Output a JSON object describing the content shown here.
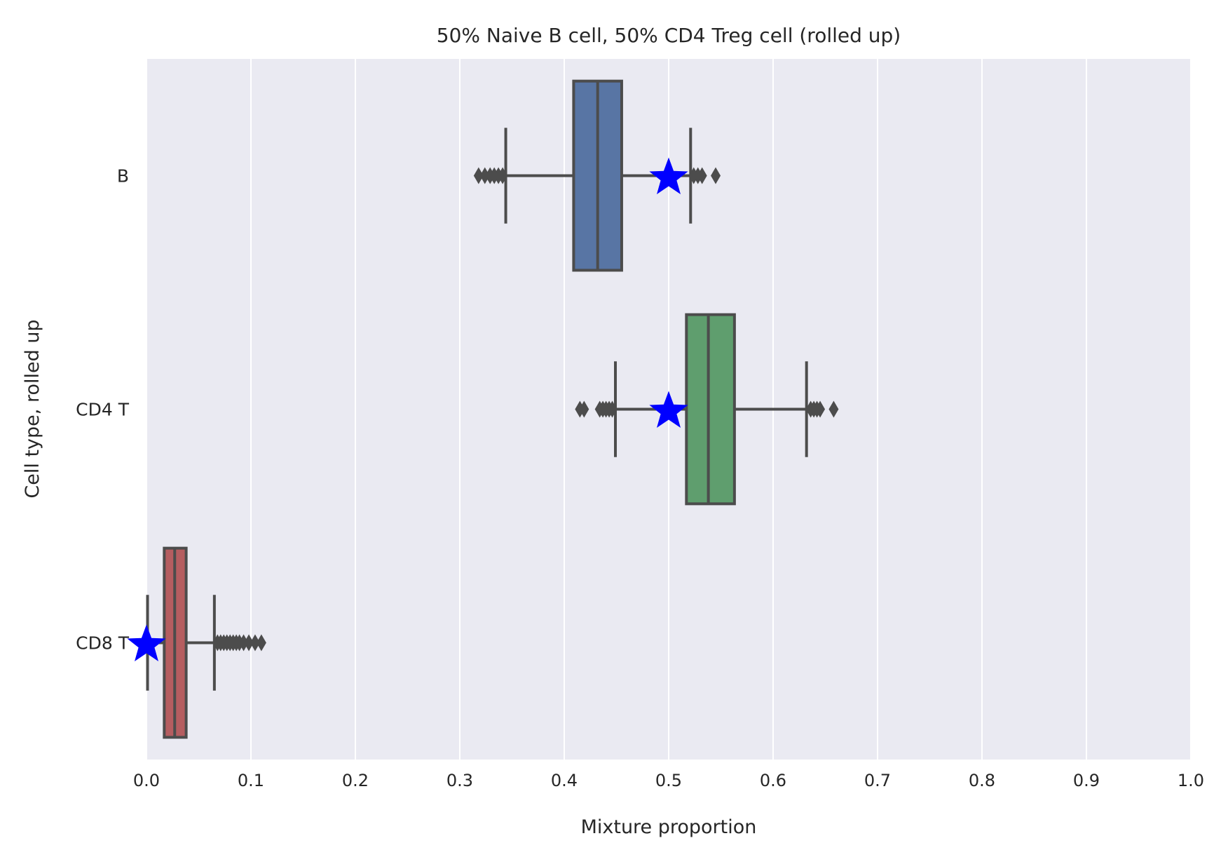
{
  "chart_data": {
    "type": "box",
    "orientation": "horizontal",
    "title": "50% Naive B cell, 50% CD4 Treg cell (rolled up)",
    "xlabel": "Mixture proportion",
    "ylabel": "Cell type, rolled up",
    "xlim": [
      0.0,
      1.0
    ],
    "x_ticks": [
      "0.0",
      "0.1",
      "0.2",
      "0.3",
      "0.4",
      "0.5",
      "0.6",
      "0.7",
      "0.8",
      "0.9",
      "1.0"
    ],
    "x_tick_values": [
      0.0,
      0.1,
      0.2,
      0.3,
      0.4,
      0.5,
      0.6,
      0.7,
      0.8,
      0.9,
      1.0
    ],
    "grid": true,
    "background": "#eaeaf2",
    "grid_color": "#ffffff",
    "box_edge_color": "#4c4c4c",
    "star_color": "#0000ff",
    "categories": [
      "B",
      "CD4 T",
      "CD8 T"
    ],
    "series": [
      {
        "category": "B",
        "color": "#5875a4",
        "whisker_low": 0.344,
        "q1": 0.409,
        "median": 0.432,
        "q3": 0.455,
        "whisker_high": 0.521,
        "outliers": [
          0.318,
          0.324,
          0.329,
          0.333,
          0.337,
          0.341,
          0.524,
          0.528,
          0.532,
          0.545
        ],
        "true_value": 0.5
      },
      {
        "category": "CD4 T",
        "color": "#5f9e6e",
        "whisker_low": 0.449,
        "q1": 0.517,
        "median": 0.538,
        "q3": 0.563,
        "whisker_high": 0.632,
        "outliers": [
          0.415,
          0.419,
          0.434,
          0.437,
          0.44,
          0.443,
          0.446,
          0.636,
          0.639,
          0.642,
          0.645,
          0.658
        ],
        "true_value": 0.5
      },
      {
        "category": "CD8 T",
        "color": "#b55d60",
        "whisker_low": 0.001,
        "q1": 0.017,
        "median": 0.027,
        "q3": 0.038,
        "whisker_high": 0.065,
        "outliers": [
          0.068,
          0.071,
          0.074,
          0.077,
          0.08,
          0.083,
          0.086,
          0.089,
          0.093,
          0.098,
          0.104,
          0.11
        ],
        "true_value": 0.0
      }
    ]
  }
}
